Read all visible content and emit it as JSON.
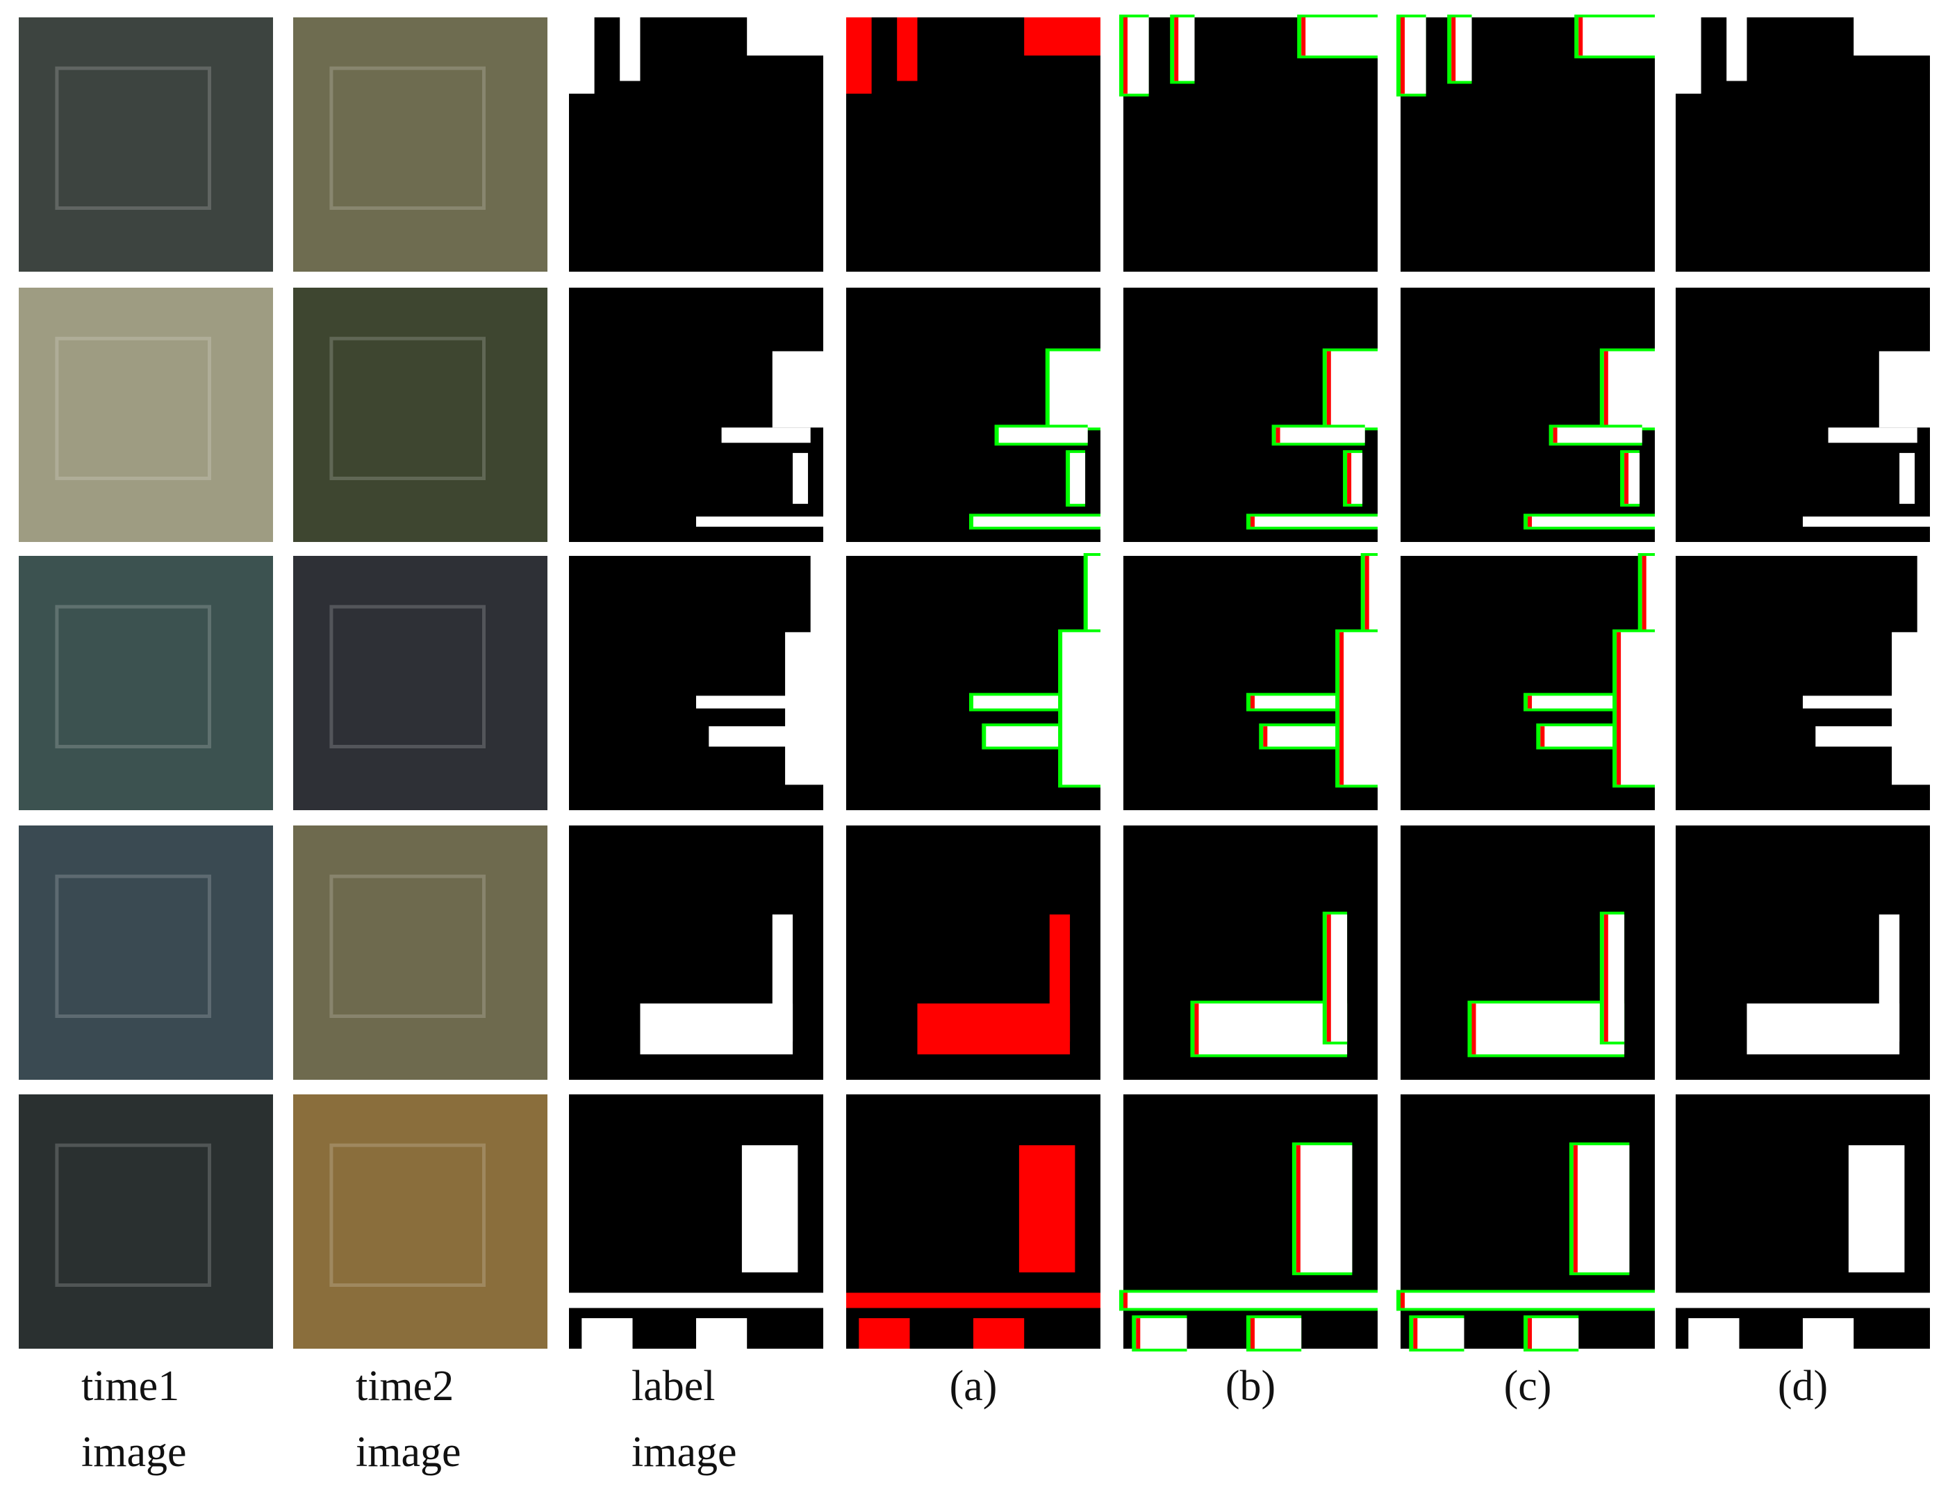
{
  "columns": [
    {
      "caption": [
        "time1",
        "image"
      ]
    },
    {
      "caption": [
        "time2",
        "image"
      ]
    },
    {
      "caption": [
        "label",
        "image"
      ]
    },
    {
      "caption": [
        "(a)"
      ]
    },
    {
      "caption": [
        "(b)"
      ]
    },
    {
      "caption": [
        "(c)"
      ]
    },
    {
      "caption": [
        "(d)"
      ]
    }
  ]
}
